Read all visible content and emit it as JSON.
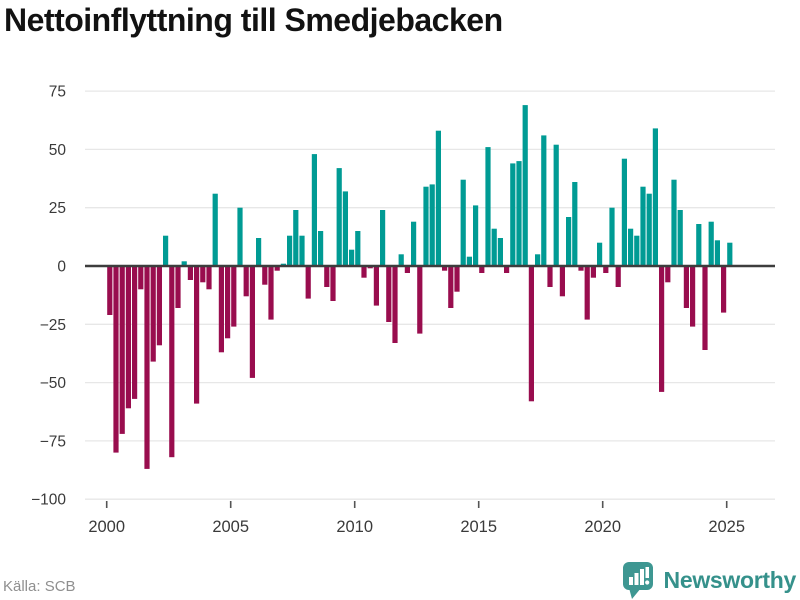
{
  "title": "Nettoinflyttning till Smedjebacken",
  "source": "Källa: SCB",
  "brand": {
    "name": "Newsworthy"
  },
  "colors": {
    "positive": "#009b94",
    "negative": "#990d4e",
    "grid": "#e7e7e7",
    "zero_line": "#3d3d3d",
    "tick_label": "#3a3a3a",
    "tick_mark": "#555555",
    "source_text": "#8f8f8f",
    "brand_teal": "#3e9792"
  },
  "chart_data": {
    "type": "bar",
    "title": "Nettoinflyttning till Smedjebacken",
    "xlabel": "",
    "ylabel": "",
    "frequency": "quarterly",
    "x_start_year": 2000,
    "x_start_quarter": 1,
    "ylim": [
      -100,
      75
    ],
    "grid": "horizontal",
    "legend": "none",
    "x_ticks": [
      {
        "year": 2000,
        "label": "2000"
      },
      {
        "year": 2005,
        "label": "2005"
      },
      {
        "year": 2010,
        "label": "2010"
      },
      {
        "year": 2015,
        "label": "2015"
      },
      {
        "year": 2020,
        "label": "2020"
      },
      {
        "year": 2025,
        "label": "2025"
      }
    ],
    "y_ticks": [
      {
        "value": 75,
        "label": "75"
      },
      {
        "value": 50,
        "label": "50"
      },
      {
        "value": 25,
        "label": "25"
      },
      {
        "value": 0,
        "label": "0"
      },
      {
        "value": -25,
        "label": "−25"
      },
      {
        "value": -50,
        "label": "−50"
      },
      {
        "value": -75,
        "label": "−75"
      },
      {
        "value": -100,
        "label": "−100"
      }
    ],
    "series": [
      {
        "name": "Nettoinflyttning",
        "values": [
          -21,
          -80,
          -72,
          -61,
          -57,
          -10,
          -87,
          -41,
          -34,
          13,
          -82,
          -18,
          2,
          -6,
          -59,
          -7,
          -10,
          31,
          -37,
          -31,
          -26,
          25,
          -13,
          -48,
          12,
          -8,
          -23,
          -2,
          1,
          13,
          24,
          13,
          -14,
          48,
          15,
          -9,
          -15,
          42,
          32,
          7,
          15,
          -5,
          -1,
          -17,
          24,
          -24,
          -33,
          5,
          -3,
          19,
          -29,
          34,
          35,
          58,
          -2,
          -18,
          -11,
          37,
          4,
          26,
          -3,
          51,
          16,
          12,
          -3,
          44,
          45,
          69,
          -58,
          5,
          56,
          -9,
          52,
          -13,
          21,
          36,
          -2,
          -23,
          -5,
          10,
          -3,
          25,
          -9,
          46,
          16,
          13,
          34,
          31,
          59,
          -54,
          -7,
          37,
          24,
          -18,
          -26,
          18,
          -36,
          19,
          11,
          -20,
          10
        ]
      }
    ]
  }
}
